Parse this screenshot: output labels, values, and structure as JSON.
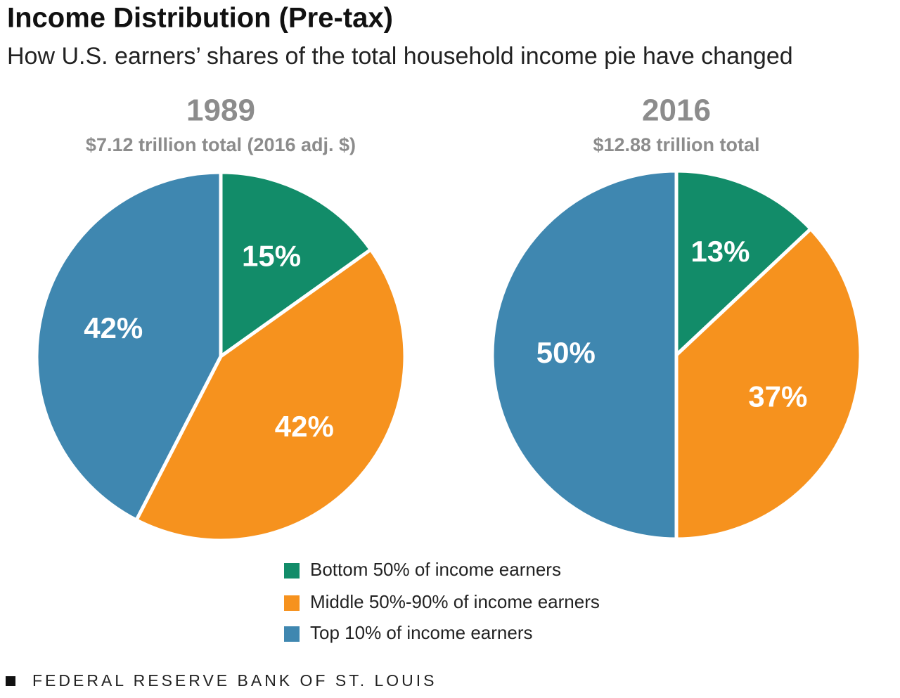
{
  "title": "Income Distribution (Pre-tax)",
  "subtitle": "How U.S. earners’ shares of the total household income pie have changed",
  "source": "FEDERAL RESERVE BANK OF ST. LOUIS",
  "legend": {
    "categories": [
      "Bottom 50% of income earners",
      "Middle 50%-90% of income earners",
      "Top 10% of income earners"
    ],
    "colors": [
      "#128c69",
      "#f6921e",
      "#3f87b0"
    ]
  },
  "chart_data": [
    {
      "type": "pie",
      "title": "1989",
      "subtitle": "$7.12 trillion total (2016 adj. $)",
      "values": [
        15,
        42,
        42
      ],
      "value_labels": [
        "15%",
        "42%",
        "42%"
      ]
    },
    {
      "type": "pie",
      "title": "2016",
      "subtitle": "$12.88 trillion total",
      "values": [
        13,
        37,
        50
      ],
      "value_labels": [
        "13%",
        "37%",
        "50%"
      ]
    }
  ]
}
